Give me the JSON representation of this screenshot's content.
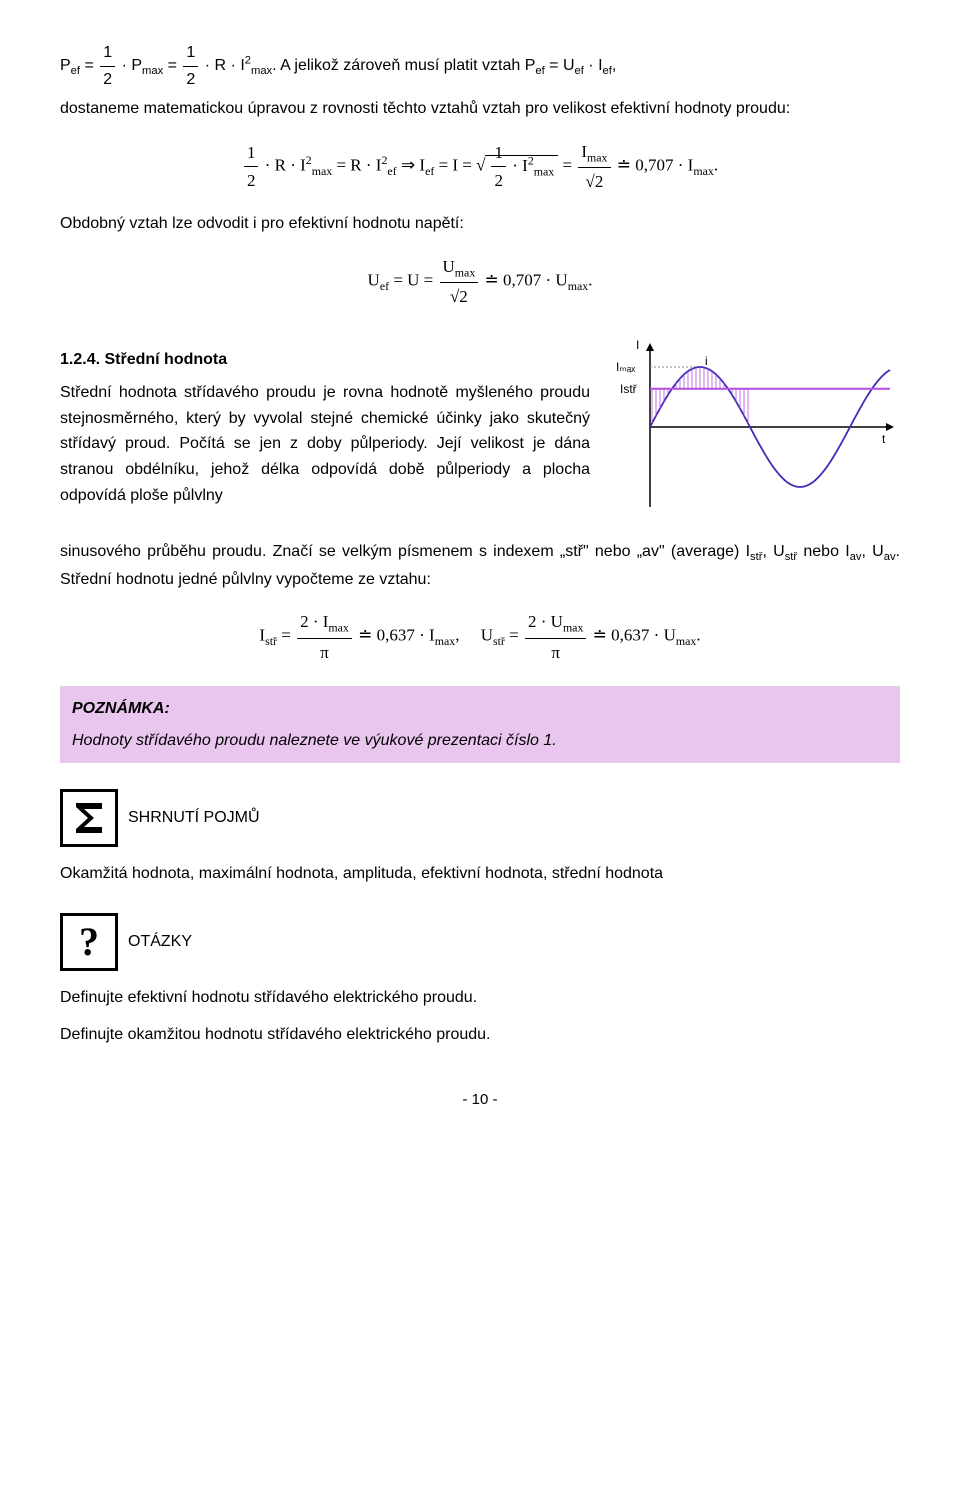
{
  "intro": {
    "line1_a": "P",
    "line1_b": " = ",
    "line1_c": " · P",
    "line1_d": " = ",
    "line1_e": " · R · I",
    "line1_f": ". A jelikož zároveň musí platit vztah P",
    "line1_g": " = U",
    "line1_h": " · I",
    "line1_i": ",",
    "line2": "dostaneme matematickou úpravou z rovnosti těchto vztahů vztah pro velikost efektivní hodnoty proudu:"
  },
  "eq1": {
    "text": " · R · I²ₘₐₓ = R · I²ₑf ⇒ Iₑf = I = √(½ · I²ₘₐₓ) = Iₘₐₓ / √2 ≐ 0,707 · Iₘₐₓ."
  },
  "para2": "Obdobný vztah lze odvodit i pro efektivní hodnotu napětí:",
  "eq2": "Uₑf = U = Uₘₐₓ / √2 ≐ 0,707 · Uₘₐₓ.",
  "section": {
    "heading": "1.2.4. Střední hodnota",
    "body1": "Střední hodnota střídavého proudu je rovna hodnotě myšleného proudu stejnosměrného, který by vyvolal stejné chemické účinky jako skutečný střídavý proud. Počítá se jen z doby půlperiody. Její velikost je dána stranou obdélníku, jehož délka odpovídá době půlperiody a plocha odpovídá ploše půlvlny",
    "body2": "sinusového průběhu proudu. Značí se velkým písmenem s indexem „stř\" nebo „av\" (average) Istř, Ustř nebo Iav, Uav. Střední hodnotu jedné půlvlny vypočteme ze vztahu:"
  },
  "eq3": "Istř = (2 · Iₘₐₓ) / π ≐ 0,637 · Iₘₐₓ,     Ustř = (2 · Uₘₐₓ) / π ≐ 0,637 · Uₘₐₓ.",
  "note": {
    "title": "POZNÁMKA:",
    "body": "Hodnoty střídavého proudu naleznete ve výukové prezentaci číslo 1."
  },
  "summary": {
    "label": "SHRNUTÍ POJMŮ",
    "body": "Okamžitá hodnota, maximální hodnota, amplituda, efektivní hodnota, střední hodnota"
  },
  "questions": {
    "label": "OTÁZKY",
    "q1": "Definujte efektivní hodnotu střídavého elektrického proudu.",
    "q2": "Definujte okamžitou hodnotu střídavého elektrického proudu."
  },
  "footer": "- 10 -",
  "chart": {
    "type": "sine-mean-value",
    "y_label": "I",
    "imax_label": "Iₘₐₓ",
    "istr_label": "Istř",
    "i_label": "i",
    "t_label": "t",
    "amplitude": 60,
    "istr_ratio": 0.637,
    "axis_color": "#000000",
    "sine_color": "#3b2db5",
    "sine_width": 1.8,
    "istr_line_color": "#b34ee0",
    "istr_line_width": 2,
    "hatch_color": "#b34ee0",
    "hatch_width": 0.8,
    "dotted_color": "#888888",
    "font_size": 12,
    "bg": "#ffffff"
  }
}
